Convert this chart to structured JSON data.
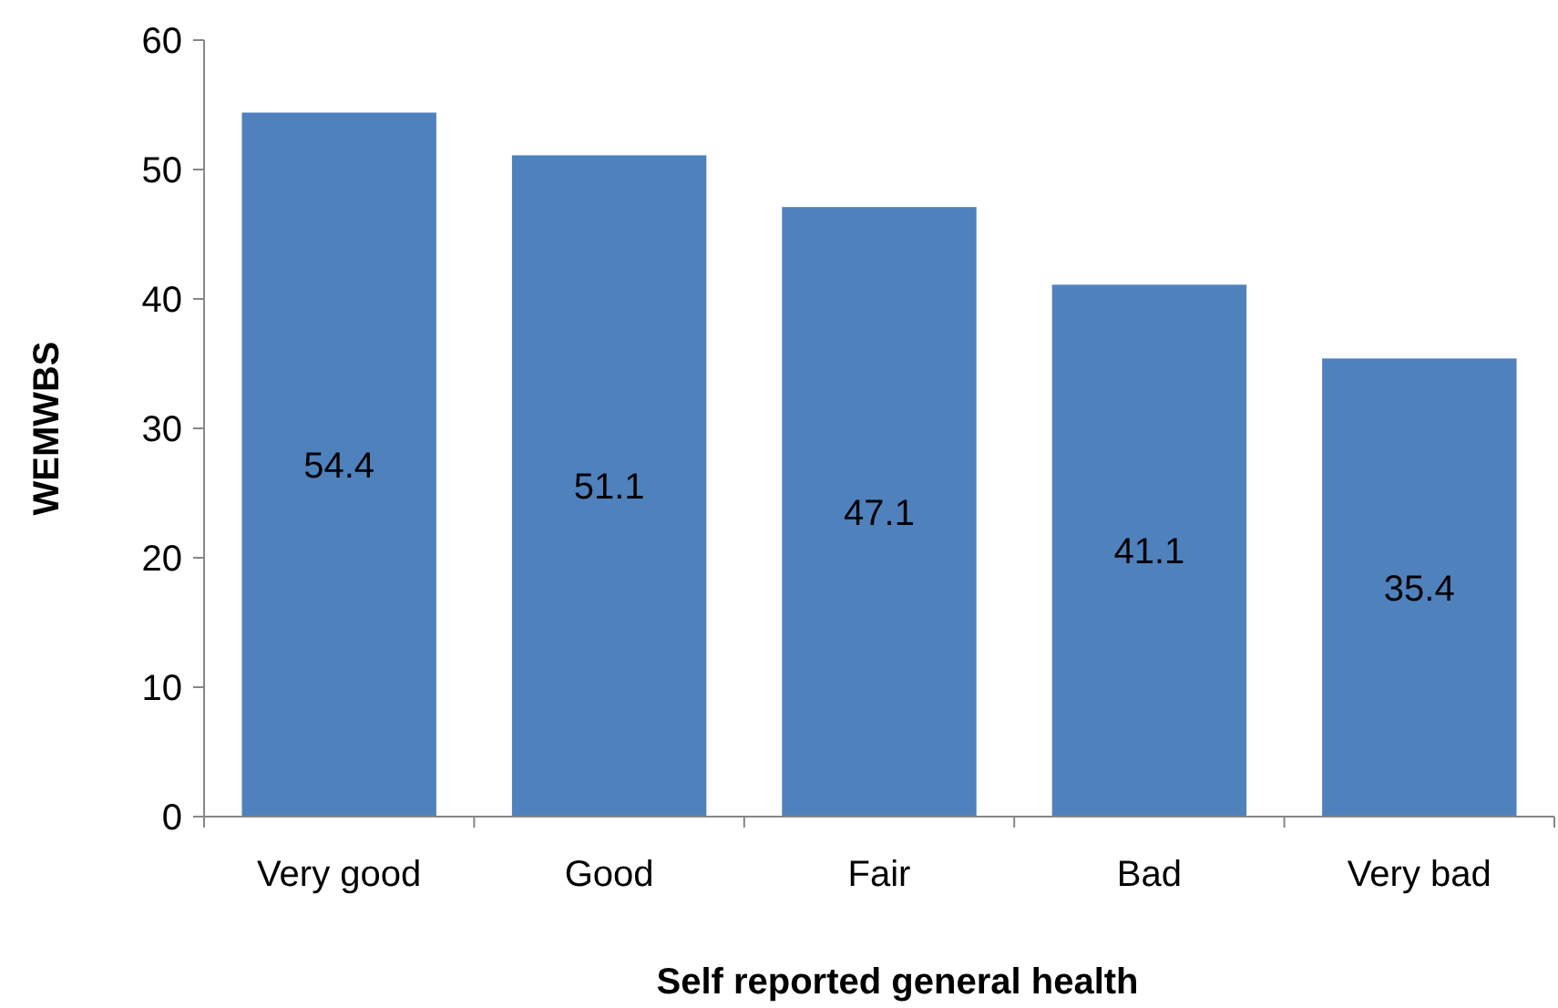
{
  "chart_data": {
    "type": "bar",
    "xlabel": "Self reported general health",
    "ylabel": "WEMWBS",
    "categories": [
      "Very good",
      "Good",
      "Fair",
      "Bad",
      "Very bad"
    ],
    "values": [
      54.4,
      51.1,
      47.1,
      41.1,
      35.4
    ],
    "color": "#4f81bd",
    "ylim": [
      0,
      60
    ],
    "yticks": [
      0,
      10,
      20,
      30,
      40,
      50,
      60
    ],
    "data_labels": true
  }
}
